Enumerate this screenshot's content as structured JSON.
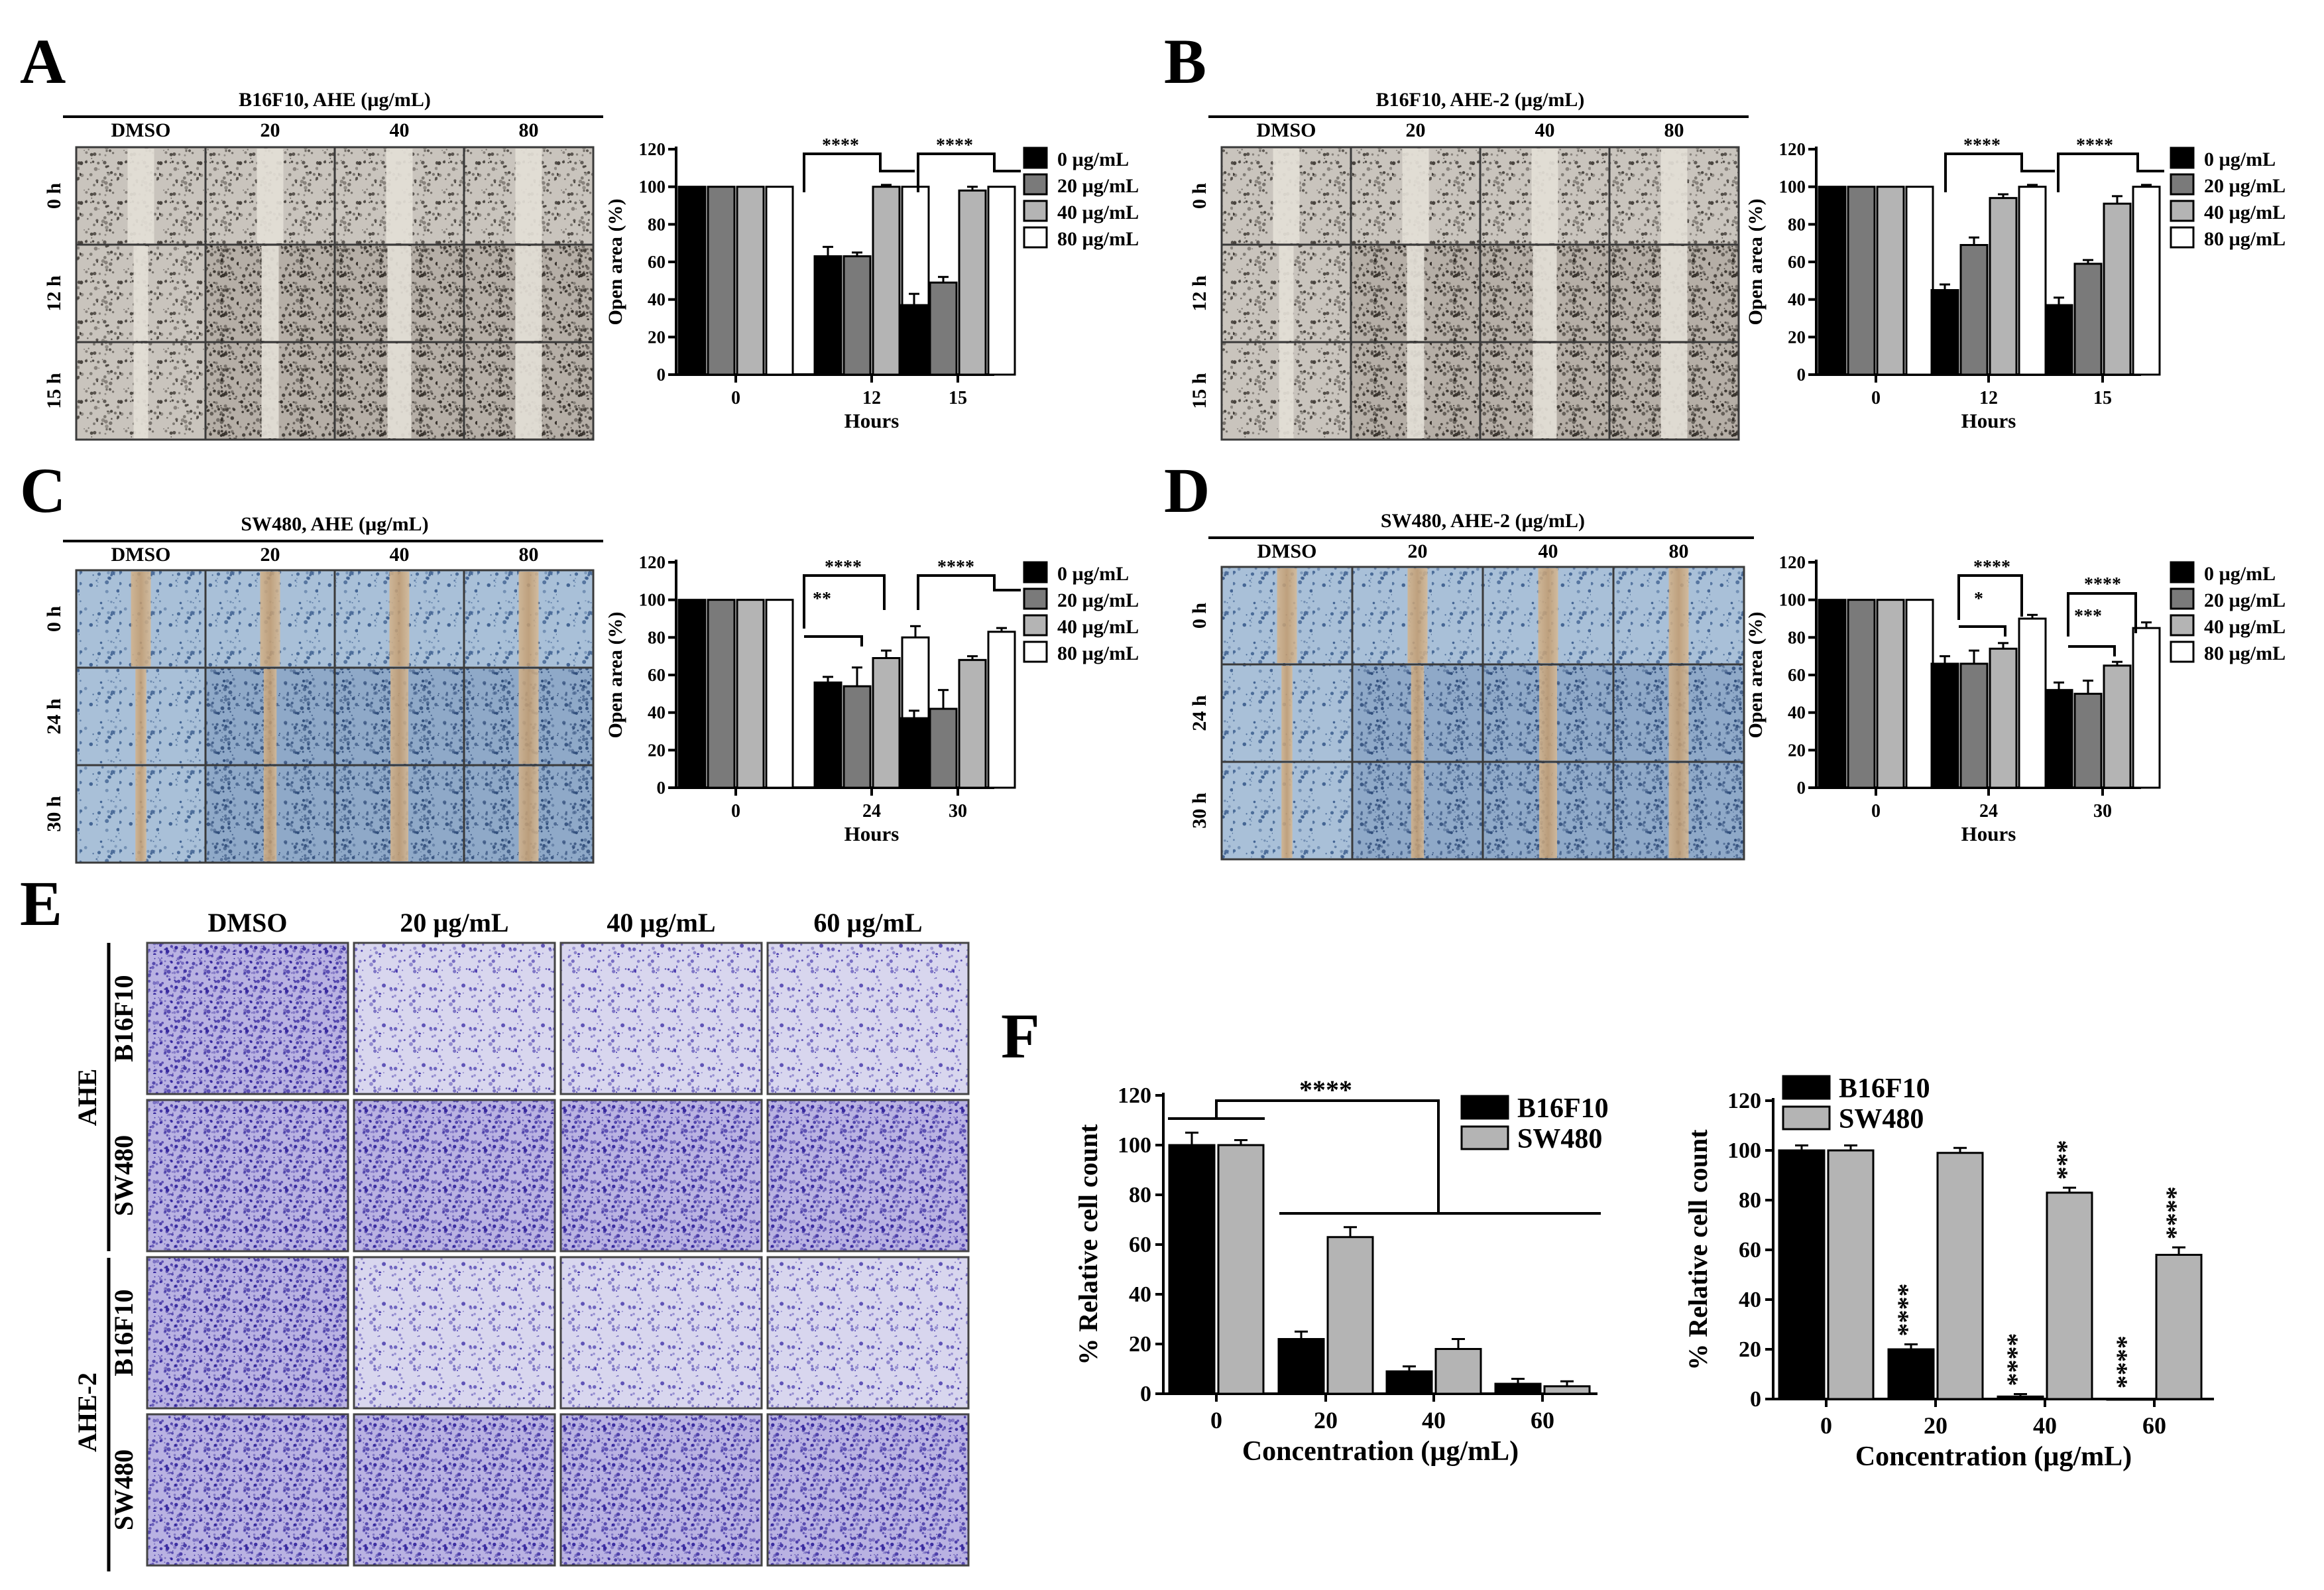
{
  "panels": {
    "A": {
      "letter": "A",
      "micro": {
        "title": "B16F10, AHE (µg/mL)",
        "columns": [
          "DMSO",
          "20",
          "40",
          "80"
        ],
        "rows": [
          "0 h",
          "12 h",
          "15 h"
        ],
        "style": "gray"
      },
      "chart": {
        "ylabel": "Open area (%)",
        "xlabel": "Hours",
        "yticks": [
          "0",
          "20",
          "40",
          "60",
          "80",
          "100",
          "120"
        ],
        "groups": [
          "0",
          "12",
          "15"
        ],
        "legend": [
          "0 µg/mL",
          "20 µg/mL",
          "40 µg/mL",
          "80 µg/mL"
        ],
        "sig": [
          "****",
          "****"
        ]
      }
    },
    "B": {
      "letter": "B",
      "micro": {
        "title": "B16F10, AHE-2 (µg/mL)",
        "columns": [
          "DMSO",
          "20",
          "40",
          "80"
        ],
        "rows": [
          "0 h",
          "12 h",
          "15 h"
        ],
        "style": "gray"
      },
      "chart": {
        "ylabel": "Open area (%)",
        "xlabel": "Hours",
        "yticks": [
          "0",
          "20",
          "40",
          "60",
          "80",
          "100",
          "120"
        ],
        "groups": [
          "0",
          "12",
          "15"
        ],
        "legend": [
          "0 µg/mL",
          "20 µg/mL",
          "40 µg/mL",
          "80 µg/mL"
        ],
        "sig": [
          "****",
          "****"
        ]
      }
    },
    "C": {
      "letter": "C",
      "micro": {
        "title": "SW480, AHE (µg/mL)",
        "columns": [
          "DMSO",
          "20",
          "40",
          "80"
        ],
        "rows": [
          "0 h",
          "24 h",
          "30 h"
        ],
        "style": "blue"
      },
      "chart": {
        "ylabel": "Open area (%)",
        "xlabel": "Hours",
        "yticks": [
          "0",
          "20",
          "40",
          "60",
          "80",
          "100",
          "120"
        ],
        "groups": [
          "0",
          "24",
          "30"
        ],
        "legend": [
          "0 µg/mL",
          "20 µg/mL",
          "40 µg/mL",
          "80 µg/mL"
        ],
        "sig": [
          "****",
          "**",
          "****"
        ]
      }
    },
    "D": {
      "letter": "D",
      "micro": {
        "title": "SW480, AHE-2 (µg/mL)",
        "columns": [
          "DMSO",
          "20",
          "40",
          "80"
        ],
        "rows": [
          "0 h",
          "24 h",
          "30 h"
        ],
        "style": "blue"
      },
      "chart": {
        "ylabel": "Open area (%)",
        "xlabel": "Hours",
        "yticks": [
          "0",
          "20",
          "40",
          "60",
          "80",
          "100",
          "120"
        ],
        "groups": [
          "0",
          "24",
          "30"
        ],
        "legend": [
          "0 µg/mL",
          "20 µg/mL",
          "40 µg/mL",
          "80 µg/mL"
        ],
        "sig": [
          "****",
          "*",
          "****",
          "***"
        ]
      }
    },
    "E": {
      "letter": "E",
      "columns": [
        "DMSO",
        "20 µg/mL",
        "40 µg/mL",
        "60 µg/mL"
      ],
      "groups": [
        "AHE",
        "AHE-2"
      ],
      "rows": [
        "B16F10",
        "SW480"
      ]
    },
    "F": {
      "letter": "F",
      "left": {
        "ylabel": "% Relative cell count",
        "xlabel": "Concentration (µg/mL)",
        "yticks": [
          "0",
          "20",
          "40",
          "60",
          "80",
          "100",
          "120"
        ],
        "groups": [
          "0",
          "20",
          "40",
          "60"
        ],
        "legend": [
          "B16F10",
          "SW480"
        ],
        "sig": [
          "****"
        ]
      },
      "right": {
        "ylabel": "% Relative cell count",
        "xlabel": "Concentration (µg/mL)",
        "yticks": [
          "0",
          "20",
          "40",
          "60",
          "80",
          "100",
          "120"
        ],
        "groups": [
          "0",
          "20",
          "40",
          "60"
        ],
        "legend": [
          "B16F10",
          "SW480"
        ],
        "sig": [
          "****",
          "***",
          "****",
          "****",
          "****"
        ]
      }
    }
  },
  "colors": {
    "black": "#000000",
    "dark_gray": "#7a7a7a",
    "light_gray": "#b4b4b4",
    "white": "#ffffff",
    "crystal_violet": "#4b3fb0",
    "scratch_tan": "#c8a77e"
  },
  "chart_data": [
    {
      "panel": "A",
      "type": "bar",
      "categories": [
        "0",
        "12",
        "15"
      ],
      "xlabel": "Hours",
      "ylabel": "Open area (%)",
      "ylim": [
        0,
        120
      ],
      "legend_position": "right",
      "series": [
        {
          "name": "0 µg/mL",
          "color": "#000000",
          "values": [
            100,
            63,
            37
          ],
          "errors": [
            0,
            5,
            6
          ]
        },
        {
          "name": "20 µg/mL",
          "color": "#7a7a7a",
          "values": [
            100,
            63,
            49
          ],
          "errors": [
            0,
            2,
            3
          ]
        },
        {
          "name": "40 µg/mL",
          "color": "#b4b4b4",
          "values": [
            100,
            100,
            98
          ],
          "errors": [
            0,
            1,
            2
          ]
        },
        {
          "name": "80 µg/mL",
          "color": "#ffffff",
          "values": [
            100,
            100,
            100
          ],
          "errors": [
            0,
            0,
            0
          ]
        }
      ],
      "annotations": [
        "****",
        "****"
      ]
    },
    {
      "panel": "B",
      "type": "bar",
      "categories": [
        "0",
        "12",
        "15"
      ],
      "xlabel": "Hours",
      "ylabel": "Open area (%)",
      "ylim": [
        0,
        120
      ],
      "legend_position": "right",
      "series": [
        {
          "name": "0 µg/mL",
          "color": "#000000",
          "values": [
            100,
            45,
            37
          ],
          "errors": [
            0,
            3,
            4
          ]
        },
        {
          "name": "20 µg/mL",
          "color": "#7a7a7a",
          "values": [
            100,
            69,
            59
          ],
          "errors": [
            0,
            4,
            2
          ]
        },
        {
          "name": "40 µg/mL",
          "color": "#b4b4b4",
          "values": [
            100,
            94,
            91
          ],
          "errors": [
            0,
            2,
            4
          ]
        },
        {
          "name": "80 µg/mL",
          "color": "#ffffff",
          "values": [
            100,
            100,
            100
          ],
          "errors": [
            0,
            1,
            1
          ]
        }
      ],
      "annotations": [
        "****",
        "****"
      ]
    },
    {
      "panel": "C",
      "type": "bar",
      "categories": [
        "0",
        "24",
        "30"
      ],
      "xlabel": "Hours",
      "ylabel": "Open area (%)",
      "ylim": [
        0,
        120
      ],
      "legend_position": "right",
      "series": [
        {
          "name": "0 µg/mL",
          "color": "#000000",
          "values": [
            100,
            56,
            37
          ],
          "errors": [
            0,
            3,
            4
          ]
        },
        {
          "name": "20 µg/mL",
          "color": "#7a7a7a",
          "values": [
            100,
            54,
            42
          ],
          "errors": [
            0,
            10,
            10
          ]
        },
        {
          "name": "40 µg/mL",
          "color": "#b4b4b4",
          "values": [
            100,
            69,
            68
          ],
          "errors": [
            0,
            4,
            2
          ]
        },
        {
          "name": "80 µg/mL",
          "color": "#ffffff",
          "values": [
            100,
            80,
            83
          ],
          "errors": [
            0,
            6,
            2
          ]
        }
      ],
      "annotations": [
        "****",
        "**",
        "****"
      ]
    },
    {
      "panel": "D",
      "type": "bar",
      "categories": [
        "0",
        "24",
        "30"
      ],
      "xlabel": "Hours",
      "ylabel": "Open area (%)",
      "ylim": [
        0,
        120
      ],
      "legend_position": "right",
      "series": [
        {
          "name": "0 µg/mL",
          "color": "#000000",
          "values": [
            100,
            66,
            52
          ],
          "errors": [
            0,
            4,
            4
          ]
        },
        {
          "name": "20 µg/mL",
          "color": "#7a7a7a",
          "values": [
            100,
            66,
            50
          ],
          "errors": [
            0,
            7,
            7
          ]
        },
        {
          "name": "40 µg/mL",
          "color": "#b4b4b4",
          "values": [
            100,
            74,
            65
          ],
          "errors": [
            0,
            3,
            2
          ]
        },
        {
          "name": "80 µg/mL",
          "color": "#ffffff",
          "values": [
            100,
            90,
            85
          ],
          "errors": [
            0,
            2,
            3
          ]
        }
      ],
      "annotations": [
        "****",
        "*",
        "****",
        "***"
      ]
    },
    {
      "panel": "F-left",
      "type": "bar",
      "categories": [
        "0",
        "20",
        "40",
        "60"
      ],
      "xlabel": "Concentration (µg/mL)",
      "ylabel": "% Relative cell count",
      "ylim": [
        0,
        120
      ],
      "legend_position": "top-right",
      "series": [
        {
          "name": "B16F10",
          "color": "#000000",
          "values": [
            100,
            22,
            9,
            4
          ],
          "errors": [
            5,
            3,
            2,
            2
          ]
        },
        {
          "name": "SW480",
          "color": "#b4b4b4",
          "values": [
            100,
            63,
            18,
            3
          ],
          "errors": [
            2,
            4,
            4,
            2
          ]
        }
      ],
      "annotations": [
        "****"
      ]
    },
    {
      "panel": "F-right",
      "type": "bar",
      "categories": [
        "0",
        "20",
        "40",
        "60"
      ],
      "xlabel": "Concentration (µg/mL)",
      "ylabel": "% Relative cell count",
      "ylim": [
        0,
        120
      ],
      "legend_position": "top-left",
      "series": [
        {
          "name": "B16F10",
          "color": "#000000",
          "values": [
            100,
            20,
            1,
            0
          ],
          "errors": [
            2,
            2,
            1,
            0
          ]
        },
        {
          "name": "SW480",
          "color": "#b4b4b4",
          "values": [
            100,
            99,
            83,
            58
          ],
          "errors": [
            2,
            2,
            2,
            3
          ]
        }
      ],
      "annotations": [
        "****",
        "***",
        "****",
        "****",
        "****"
      ]
    }
  ]
}
